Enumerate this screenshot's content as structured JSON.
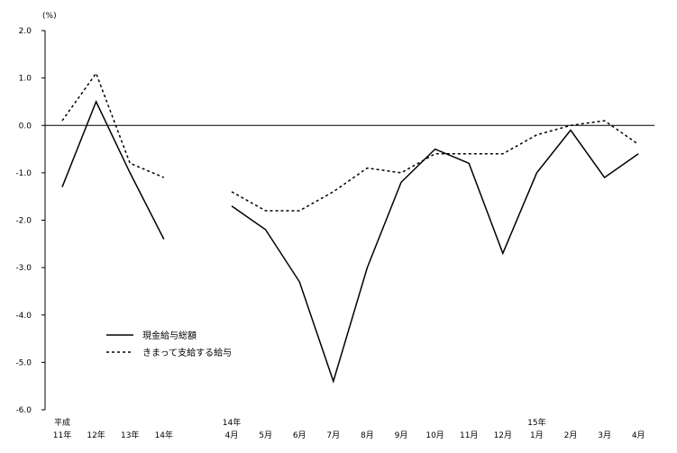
{
  "chart_data": {
    "type": "line",
    "ylabel": "(%)",
    "ylim": [
      -6.0,
      2.0
    ],
    "yticks": [
      "2.0",
      "1.0",
      "0.0",
      "-1.0",
      "-2.0",
      "-3.0",
      "-4.0",
      "-5.0",
      "-6.0"
    ],
    "categories": [
      {
        "top": "平成",
        "bottom": "11年"
      },
      {
        "top": "",
        "bottom": "12年"
      },
      {
        "top": "",
        "bottom": "13年"
      },
      {
        "top": "",
        "bottom": "14年"
      },
      {
        "top": "",
        "bottom": ""
      },
      {
        "top": "14年",
        "bottom": "4月"
      },
      {
        "top": "",
        "bottom": "5月"
      },
      {
        "top": "",
        "bottom": "6月"
      },
      {
        "top": "",
        "bottom": "7月"
      },
      {
        "top": "",
        "bottom": "8月"
      },
      {
        "top": "",
        "bottom": "9月"
      },
      {
        "top": "",
        "bottom": "10月"
      },
      {
        "top": "",
        "bottom": "11月"
      },
      {
        "top": "",
        "bottom": "12月"
      },
      {
        "top": "15年",
        "bottom": "1月"
      },
      {
        "top": "",
        "bottom": "2月"
      },
      {
        "top": "",
        "bottom": "3月"
      },
      {
        "top": "",
        "bottom": "4月"
      }
    ],
    "series": [
      {
        "name": "現金給与総額",
        "style": "solid",
        "color": "#000000",
        "values": [
          -1.3,
          0.5,
          -1.0,
          -2.4,
          null,
          -1.7,
          -2.2,
          -3.3,
          -5.4,
          -3.0,
          -1.2,
          -0.5,
          -0.8,
          -2.7,
          -1.0,
          -0.1,
          -1.1,
          -0.6
        ]
      },
      {
        "name": "きまって支給する給与",
        "style": "dotted",
        "color": "#000000",
        "values": [
          0.1,
          1.1,
          -0.8,
          -1.1,
          null,
          -1.4,
          -1.8,
          -1.8,
          -1.4,
          -0.9,
          -1.0,
          -0.6,
          -0.6,
          -0.6,
          -0.2,
          0.0,
          0.1,
          -0.4
        ]
      }
    ],
    "grid": false,
    "legend_position": "bottom-left"
  }
}
